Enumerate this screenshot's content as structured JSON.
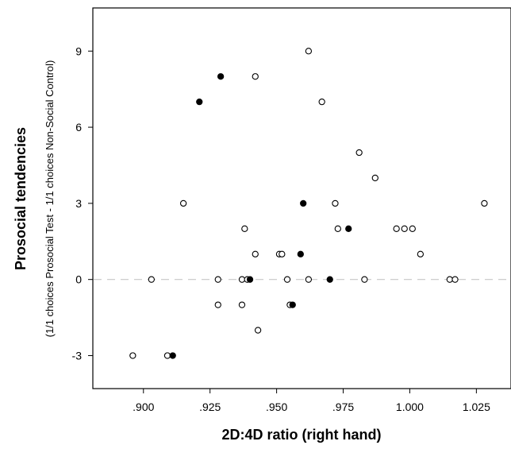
{
  "chart_data": {
    "type": "scatter",
    "title": "",
    "xlabel": "2D:4D ratio (right hand)",
    "ylabel": "Prosocial tendencies",
    "ylabel_sub": "(1/1 choices Prosocial Test - 1/1 choices Non-Social Control)",
    "xlim": [
      0.881,
      1.038
    ],
    "ylim": [
      -4.3,
      10.7
    ],
    "x_ticks": [
      0.9,
      0.925,
      0.95,
      0.975,
      1.0,
      1.025
    ],
    "x_tick_labels": [
      ".900",
      ".925",
      ".950",
      ".975",
      "1.000",
      "1.025"
    ],
    "y_ticks": [
      -3,
      0,
      3,
      6,
      9
    ],
    "y_tick_labels": [
      "-3",
      "0",
      "3",
      "6",
      "9"
    ],
    "grid": false,
    "reference_line": {
      "y": 0,
      "style": "dashed",
      "color": "#c8c8c8"
    },
    "series": [
      {
        "marker": "open-circle",
        "color": "#000000",
        "points": [
          {
            "x": 0.896,
            "y": -3
          },
          {
            "x": 0.909,
            "y": -3
          },
          {
            "x": 0.903,
            "y": 0
          },
          {
            "x": 0.915,
            "y": 3
          },
          {
            "x": 0.928,
            "y": 0
          },
          {
            "x": 0.928,
            "y": -1
          },
          {
            "x": 0.937,
            "y": -1
          },
          {
            "x": 0.937,
            "y": 0
          },
          {
            "x": 0.938,
            "y": 2
          },
          {
            "x": 0.939,
            "y": 0
          },
          {
            "x": 0.942,
            "y": 8
          },
          {
            "x": 0.942,
            "y": 1
          },
          {
            "x": 0.943,
            "y": -2
          },
          {
            "x": 0.951,
            "y": 1
          },
          {
            "x": 0.952,
            "y": 1
          },
          {
            "x": 0.954,
            "y": 0
          },
          {
            "x": 0.955,
            "y": -1
          },
          {
            "x": 0.962,
            "y": 9
          },
          {
            "x": 0.962,
            "y": 0
          },
          {
            "x": 0.967,
            "y": 7
          },
          {
            "x": 0.972,
            "y": 3
          },
          {
            "x": 0.973,
            "y": 2
          },
          {
            "x": 0.981,
            "y": 5
          },
          {
            "x": 0.983,
            "y": 0
          },
          {
            "x": 0.987,
            "y": 4
          },
          {
            "x": 0.995,
            "y": 2
          },
          {
            "x": 0.998,
            "y": 2
          },
          {
            "x": 1.001,
            "y": 2
          },
          {
            "x": 1.004,
            "y": 1
          },
          {
            "x": 1.015,
            "y": 0
          },
          {
            "x": 1.017,
            "y": 0
          },
          {
            "x": 1.028,
            "y": 3
          }
        ]
      },
      {
        "marker": "filled-circle",
        "color": "#000000",
        "points": [
          {
            "x": 0.911,
            "y": -3
          },
          {
            "x": 0.921,
            "y": 7
          },
          {
            "x": 0.929,
            "y": 8
          },
          {
            "x": 0.94,
            "y": 0
          },
          {
            "x": 0.956,
            "y": -1
          },
          {
            "x": 0.959,
            "y": 1
          },
          {
            "x": 0.96,
            "y": 3
          },
          {
            "x": 0.97,
            "y": 0
          },
          {
            "x": 0.977,
            "y": 2
          }
        ]
      }
    ]
  }
}
